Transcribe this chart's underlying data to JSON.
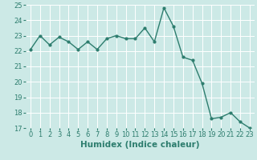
{
  "x": [
    0,
    1,
    2,
    3,
    4,
    5,
    6,
    7,
    8,
    9,
    10,
    11,
    12,
    13,
    14,
    15,
    16,
    17,
    18,
    19,
    20,
    21,
    22,
    23
  ],
  "y": [
    22.1,
    23.0,
    22.4,
    22.9,
    22.6,
    22.1,
    22.6,
    22.1,
    22.8,
    23.0,
    22.8,
    22.8,
    23.5,
    22.6,
    24.8,
    23.6,
    21.6,
    21.4,
    19.9,
    17.6,
    17.7,
    18.0,
    17.4,
    17.0
  ],
  "line_color": "#2d7d6e",
  "marker": "o",
  "marker_size": 2.0,
  "linewidth": 1.0,
  "xlabel": "Humidex (Indice chaleur)",
  "xlim": [
    -0.5,
    23.5
  ],
  "ylim": [
    17,
    25
  ],
  "yticks": [
    17,
    18,
    19,
    20,
    21,
    22,
    23,
    24,
    25
  ],
  "xticks": [
    0,
    1,
    2,
    3,
    4,
    5,
    6,
    7,
    8,
    9,
    10,
    11,
    12,
    13,
    14,
    15,
    16,
    17,
    18,
    19,
    20,
    21,
    22,
    23
  ],
  "background_color": "#cce9e6",
  "grid_color": "#ffffff",
  "line_label_color": "#2d7d6e",
  "xlabel_fontsize": 7.5,
  "tick_fontsize": 6.0
}
